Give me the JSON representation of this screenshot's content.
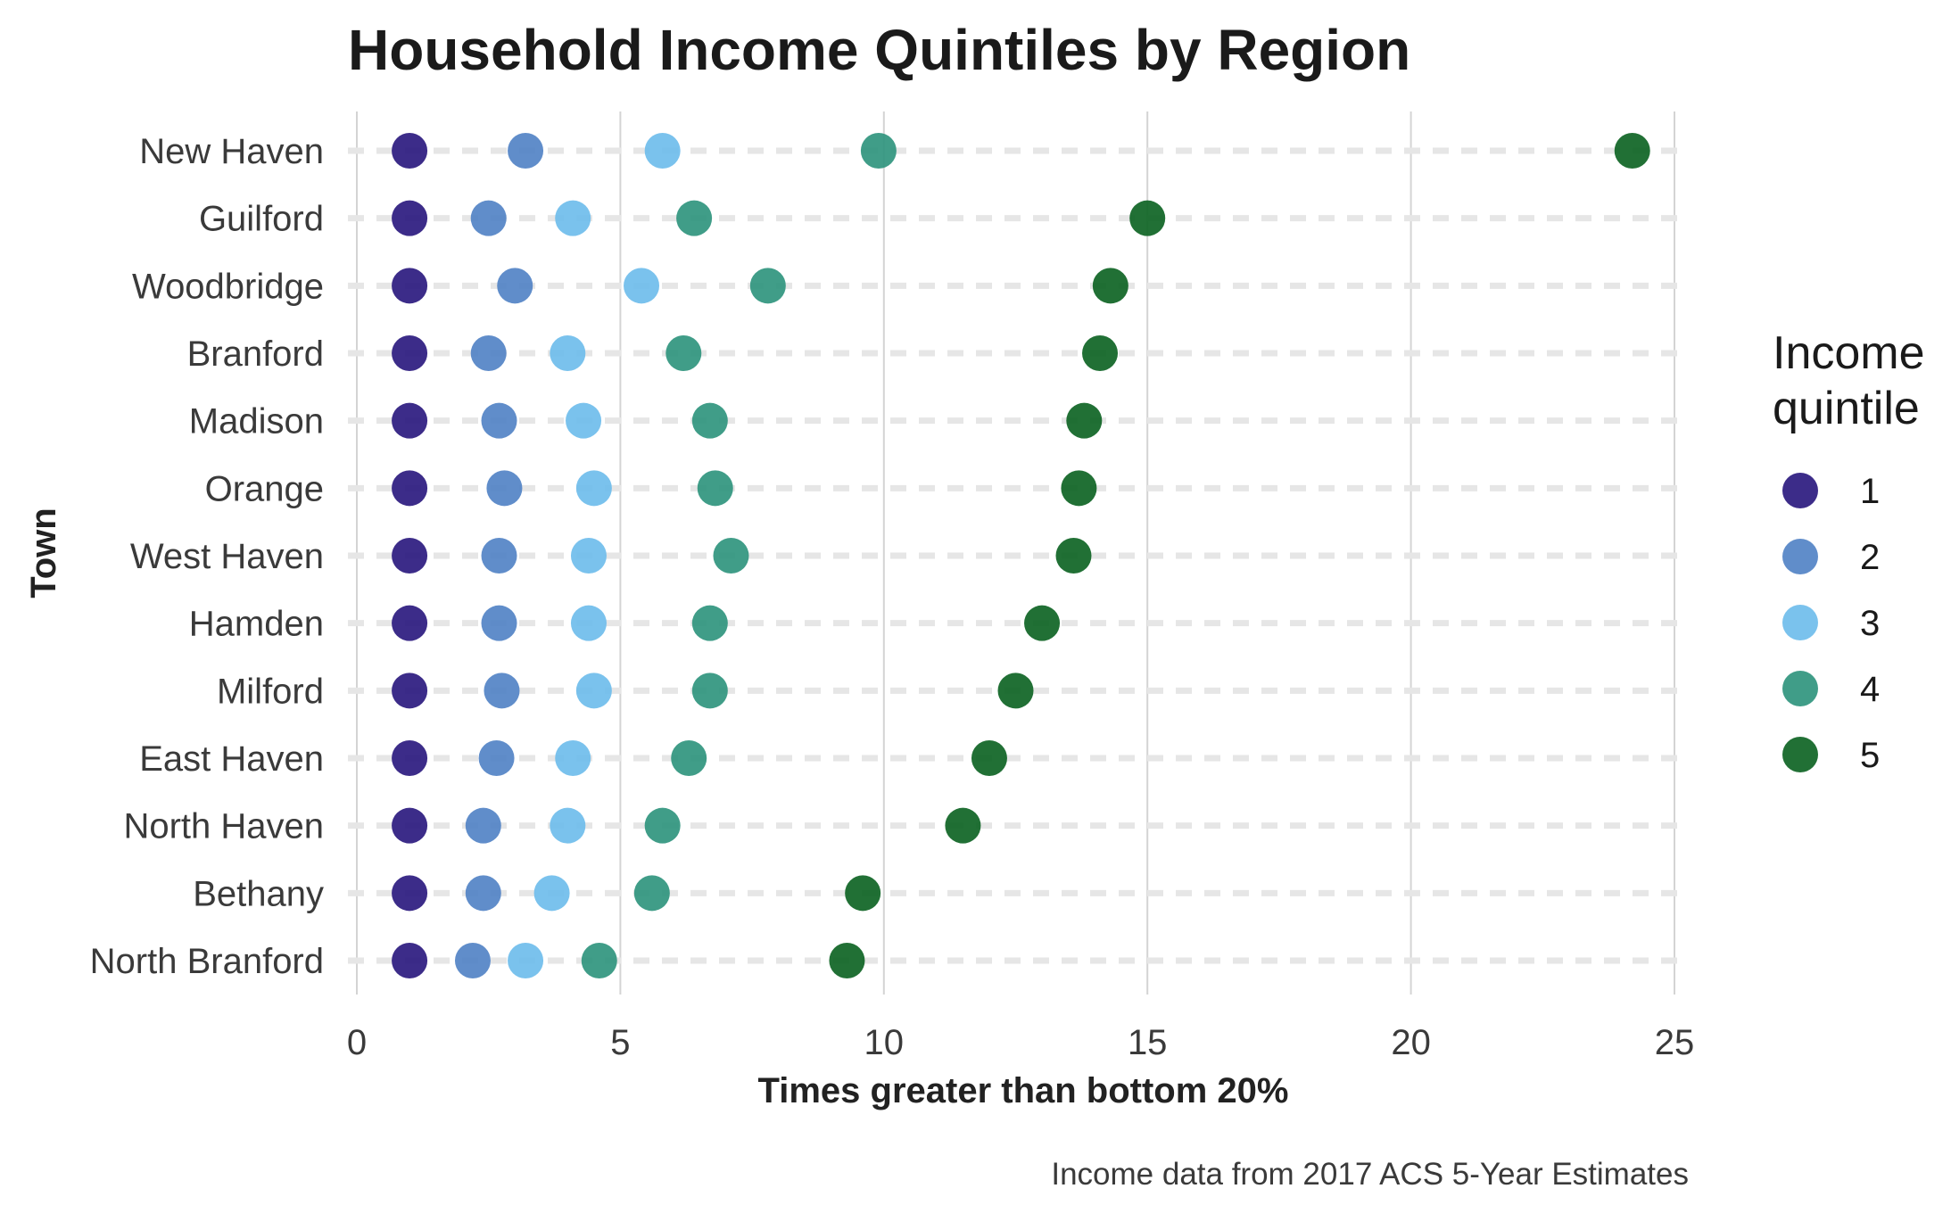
{
  "chart_data": {
    "type": "scatter",
    "title": "Household Income Quintiles by Region",
    "xlabel": "Times greater than bottom 20%",
    "ylabel": "Town",
    "caption": "Income data from 2017 ACS 5-Year Estimates",
    "xlim": [
      0,
      25
    ],
    "x_ticks": [
      "0",
      "5",
      "10",
      "15",
      "20",
      "25"
    ],
    "x_tick_values": [
      0,
      5,
      10,
      15,
      20,
      25
    ],
    "grid": true,
    "legend": {
      "title_lines": [
        "Income",
        "quintile"
      ],
      "placement": "right",
      "items": [
        "1",
        "2",
        "3",
        "4",
        "5"
      ]
    },
    "colors": [
      "#2b1a7f",
      "#5383c6",
      "#6fbdec",
      "#30957e",
      "#0e6424"
    ],
    "towns": [
      "New Haven",
      "Guilford",
      "Woodbridge",
      "Branford",
      "Madison",
      "Orange",
      "West Haven",
      "Hamden",
      "Milford",
      "East Haven",
      "North Haven",
      "Bethany",
      "North Branford"
    ],
    "series": [
      {
        "name": "1",
        "values": [
          1,
          1,
          1,
          1,
          1,
          1,
          1,
          1,
          1,
          1,
          1,
          1,
          1
        ]
      },
      {
        "name": "2",
        "values": [
          3.2,
          2.5,
          3.0,
          2.5,
          2.7,
          2.8,
          2.7,
          2.7,
          2.75,
          2.65,
          2.4,
          2.4,
          2.2
        ]
      },
      {
        "name": "3",
        "values": [
          5.8,
          4.1,
          5.4,
          4.0,
          4.3,
          4.5,
          4.4,
          4.4,
          4.5,
          4.1,
          4.0,
          3.7,
          3.2
        ]
      },
      {
        "name": "4",
        "values": [
          9.9,
          6.4,
          7.8,
          6.2,
          6.7,
          6.8,
          7.1,
          6.7,
          6.7,
          6.3,
          5.8,
          5.6,
          4.6
        ]
      },
      {
        "name": "5",
        "values": [
          24.2,
          15.0,
          14.3,
          14.1,
          13.8,
          13.7,
          13.6,
          13.0,
          12.5,
          12.0,
          11.5,
          9.6,
          9.3
        ]
      }
    ]
  }
}
